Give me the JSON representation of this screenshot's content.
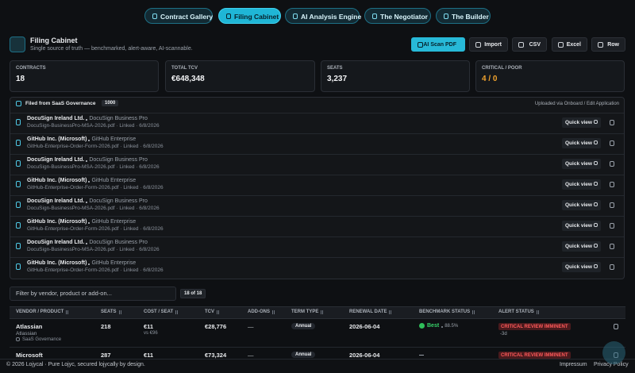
{
  "nav": {
    "tabs": [
      "Contract Gallery",
      "Filing Cabinet",
      "AI Analysis Engine",
      "The Negotiator",
      "The Builder"
    ],
    "active": 1
  },
  "header": {
    "title": "Filing Cabinet",
    "subtitle": "Single source of truth — benchmarked, alert-aware, AI-scannable.",
    "actions": [
      "AI Scan PDF",
      "Import",
      "CSV",
      "Excel",
      "Row"
    ]
  },
  "stats": [
    {
      "label": "CONTRACTS",
      "value": "18"
    },
    {
      "label": "TOTAL TCV",
      "value": "€648,348"
    },
    {
      "label": "SEATS",
      "value": "3,237"
    },
    {
      "label": "CRITICAL / POOR",
      "value": "4 / 0"
    }
  ],
  "filed": {
    "title": "Filed from SaaS Governance",
    "count": "1000",
    "note": "Uploaded via Onboard / Edit Application",
    "action": "Quick view",
    "rows": [
      {
        "vendor": "DocuSign Ireland Ltd.",
        "product": "DocuSign Business Pro",
        "meta": "DocuSign-BusinessPro-MSA-2026.pdf · Linked · 6/8/2026"
      },
      {
        "vendor": "GitHub Inc. (Microsoft)",
        "product": "GitHub Enterprise",
        "meta": "GitHub-Enterprise-Order-Form-2026.pdf · Linked · 6/8/2026"
      },
      {
        "vendor": "DocuSign Ireland Ltd.",
        "product": "DocuSign Business Pro",
        "meta": "DocuSign-BusinessPro-MSA-2026.pdf · Linked · 6/8/2026"
      },
      {
        "vendor": "GitHub Inc. (Microsoft)",
        "product": "GitHub Enterprise",
        "meta": "GitHub-Enterprise-Order-Form-2026.pdf · Linked · 6/8/2026"
      },
      {
        "vendor": "DocuSign Ireland Ltd.",
        "product": "DocuSign Business Pro",
        "meta": "DocuSign-BusinessPro-MSA-2026.pdf · Linked · 6/8/2026"
      },
      {
        "vendor": "GitHub Inc. (Microsoft)",
        "product": "GitHub Enterprise",
        "meta": "GitHub-Enterprise-Order-Form-2026.pdf · Linked · 6/8/2026"
      },
      {
        "vendor": "DocuSign Ireland Ltd.",
        "product": "DocuSign Business Pro",
        "meta": "DocuSign-BusinessPro-MSA-2026.pdf · Linked · 6/8/2026"
      },
      {
        "vendor": "GitHub Inc. (Microsoft)",
        "product": "GitHub Enterprise",
        "meta": "GitHub-Enterprise-Order-Form-2026.pdf · Linked · 6/8/2026"
      }
    ]
  },
  "filter": {
    "placeholder": "Filter by vendor, product or add-on...",
    "count": "18 of 18"
  },
  "table": {
    "columns": [
      "VENDOR / PRODUCT",
      "SEATS",
      "COST / SEAT",
      "TCV",
      "ADD-ONS",
      "TERM TYPE",
      "RENEWAL DATE",
      "BENCHMARK STATUS",
      "ALERT STATUS"
    ],
    "rows": [
      {
        "vendor": "Atlassian",
        "sub": "Atlassian",
        "source": "SaaS Governance",
        "seats": "218",
        "cost": "€11",
        "vs": "vs €96",
        "tcv": "€28,776",
        "addons": "—",
        "term": "Annual",
        "renewal": "2026-06-04",
        "benchmark": "Best",
        "score": "88.5%",
        "alert": "CRITICAL REVIEW IMMINENT",
        "days": "-3d"
      },
      {
        "vendor": "Microsoft",
        "seats": "287",
        "cost": "€11",
        "tcv": "€73,324",
        "addons": "—",
        "term": "Annual",
        "renewal": "2026-06-04",
        "alert": "CRITICAL REVIEW IMMINENT"
      }
    ]
  },
  "footer": {
    "copyright": "© 2026 Lojycal · Pure Lojyc, secured lojycally by design.",
    "links": [
      "Impressum",
      "Privacy Policy"
    ]
  }
}
